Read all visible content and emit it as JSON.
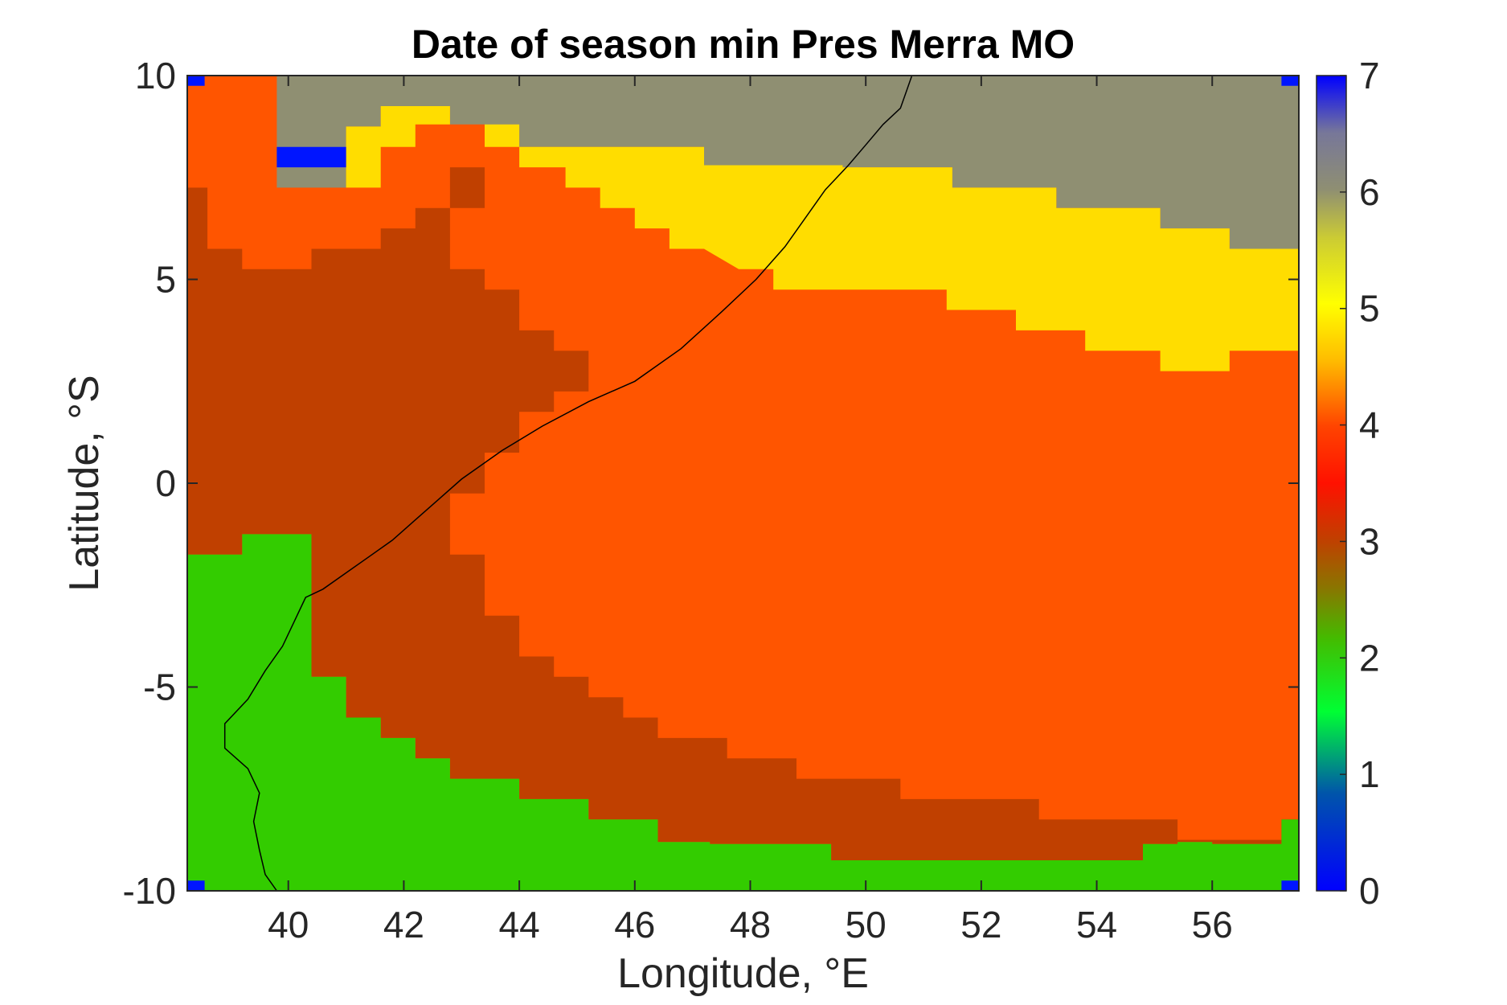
{
  "chart_data": {
    "type": "heatmap",
    "title": "Date of season min Pres Merra MO",
    "xlabel": "Longitude, °E",
    "ylabel": "Latitude, °S",
    "xlim": [
      38.25,
      57.5
    ],
    "ylim": [
      -10,
      10
    ],
    "xticks": [
      40,
      42,
      44,
      46,
      48,
      50,
      52,
      54,
      56
    ],
    "yticks": [
      -10,
      -5,
      0,
      5,
      10
    ],
    "colorbar": {
      "ticks": [
        0,
        1,
        2,
        3,
        4,
        5,
        6,
        7
      ],
      "range": [
        0,
        7
      ]
    },
    "colors": {
      "gray_6": "#8f8f72",
      "yellow_5": "#ffdd00",
      "orange_4": "#ff5500",
      "brown_3": "#c04000",
      "green_2": "#33cc00",
      "blue_0": "#0015ff",
      "coastline": "#000000"
    },
    "grid": false,
    "regions": [
      {
        "value": 6,
        "color": "gray_6",
        "polygon": [
          [
            39.8,
            10
          ],
          [
            57.5,
            10
          ],
          [
            57.5,
            5.75
          ],
          [
            56.3,
            5.75
          ],
          [
            56.3,
            6.25
          ],
          [
            55.1,
            6.25
          ],
          [
            55.1,
            6.75
          ],
          [
            53.3,
            6.75
          ],
          [
            53.3,
            7.25
          ],
          [
            51.5,
            7.25
          ],
          [
            51.5,
            7.75
          ],
          [
            49.6,
            7.75
          ],
          [
            49.6,
            7.8
          ],
          [
            48.5,
            7.8
          ],
          [
            47.2,
            7.8
          ],
          [
            47.2,
            8.25
          ],
          [
            44.0,
            8.25
          ],
          [
            44.0,
            8.75
          ],
          [
            43.4,
            8.75
          ],
          [
            43.4,
            8.8
          ],
          [
            42.8,
            8.8
          ],
          [
            42.8,
            9.25
          ],
          [
            41.6,
            9.25
          ],
          [
            41.6,
            8.75
          ],
          [
            41.0,
            8.75
          ],
          [
            41.0,
            7.25
          ],
          [
            39.8,
            7.25
          ]
        ]
      },
      {
        "value": 5,
        "color": "yellow_5",
        "polygon": [
          [
            44.0,
            8.25
          ],
          [
            47.2,
            8.25
          ],
          [
            47.2,
            7.8
          ],
          [
            49.6,
            7.8
          ],
          [
            49.6,
            7.75
          ],
          [
            51.5,
            7.75
          ],
          [
            51.5,
            7.25
          ],
          [
            53.3,
            7.25
          ],
          [
            53.3,
            6.75
          ],
          [
            55.1,
            6.75
          ],
          [
            55.1,
            6.25
          ],
          [
            56.3,
            6.25
          ],
          [
            56.3,
            5.75
          ],
          [
            57.5,
            5.75
          ],
          [
            57.5,
            3.25
          ],
          [
            56.3,
            3.25
          ],
          [
            56.3,
            2.75
          ],
          [
            55.1,
            2.75
          ],
          [
            55.1,
            3.25
          ],
          [
            53.8,
            3.25
          ],
          [
            53.8,
            3.75
          ],
          [
            52.6,
            3.75
          ],
          [
            52.6,
            4.25
          ],
          [
            51.4,
            4.25
          ],
          [
            51.4,
            4.75
          ],
          [
            50.2,
            4.75
          ],
          [
            50.2,
            4.75
          ],
          [
            48.4,
            4.75
          ],
          [
            48.4,
            5.25
          ],
          [
            47.8,
            5.25
          ],
          [
            47.2,
            5.75
          ],
          [
            46.6,
            5.75
          ],
          [
            46.6,
            6.25
          ],
          [
            46.0,
            6.25
          ],
          [
            46.0,
            6.75
          ],
          [
            45.4,
            6.75
          ],
          [
            45.4,
            7.25
          ],
          [
            44.8,
            7.25
          ],
          [
            44.8,
            7.75
          ],
          [
            44.0,
            7.75
          ]
        ]
      },
      {
        "value": 5,
        "color": "yellow_5",
        "polygon": [
          [
            41.0,
            8.75
          ],
          [
            41.6,
            8.75
          ],
          [
            41.6,
            9.25
          ],
          [
            42.8,
            9.25
          ],
          [
            42.8,
            8.8
          ],
          [
            42.2,
            8.8
          ],
          [
            42.2,
            8.25
          ],
          [
            41.6,
            8.25
          ],
          [
            41.6,
            7.25
          ],
          [
            41.0,
            7.25
          ]
        ]
      },
      {
        "value": 5,
        "color": "yellow_5",
        "polygon": [
          [
            43.4,
            8.8
          ],
          [
            44.0,
            8.8
          ],
          [
            44.0,
            8.25
          ],
          [
            43.4,
            8.25
          ]
        ]
      },
      {
        "value": 3,
        "color": "brown_3",
        "polygon": [
          [
            38.25,
            7.25
          ],
          [
            38.6,
            7.25
          ],
          [
            38.6,
            5.75
          ],
          [
            39.2,
            5.75
          ],
          [
            39.2,
            5.25
          ],
          [
            40.4,
            5.25
          ],
          [
            40.4,
            5.75
          ],
          [
            41.6,
            5.75
          ],
          [
            41.6,
            6.25
          ],
          [
            42.2,
            6.25
          ],
          [
            42.2,
            6.75
          ],
          [
            42.8,
            6.75
          ],
          [
            42.8,
            7.75
          ],
          [
            43.4,
            7.75
          ],
          [
            43.4,
            6.75
          ],
          [
            42.8,
            6.75
          ],
          [
            42.8,
            5.25
          ],
          [
            43.4,
            5.25
          ],
          [
            43.4,
            4.75
          ],
          [
            44.0,
            4.75
          ],
          [
            44.0,
            3.75
          ],
          [
            44.6,
            3.75
          ],
          [
            44.6,
            3.25
          ],
          [
            45.2,
            3.25
          ],
          [
            45.2,
            2.25
          ],
          [
            44.6,
            2.25
          ],
          [
            44.6,
            1.75
          ],
          [
            44.0,
            1.75
          ],
          [
            44.0,
            0.75
          ],
          [
            43.4,
            0.75
          ],
          [
            43.4,
            -0.25
          ],
          [
            42.8,
            -0.25
          ],
          [
            42.8,
            -1.75
          ],
          [
            43.4,
            -1.75
          ],
          [
            43.4,
            -3.25
          ],
          [
            44.0,
            -3.25
          ],
          [
            44.0,
            -4.25
          ],
          [
            44.6,
            -4.25
          ],
          [
            44.6,
            -4.75
          ],
          [
            45.2,
            -4.75
          ],
          [
            45.2,
            -5.25
          ],
          [
            45.8,
            -5.25
          ],
          [
            45.8,
            -5.75
          ],
          [
            46.4,
            -5.75
          ],
          [
            46.4,
            -6.25
          ],
          [
            47.6,
            -6.25
          ],
          [
            47.6,
            -6.75
          ],
          [
            48.8,
            -6.75
          ],
          [
            48.8,
            -7.25
          ],
          [
            50.6,
            -7.25
          ],
          [
            50.6,
            -7.75
          ],
          [
            53.0,
            -7.75
          ],
          [
            53.0,
            -8.25
          ],
          [
            55.4,
            -8.25
          ],
          [
            55.4,
            -8.75
          ],
          [
            57.2,
            -8.75
          ],
          [
            57.2,
            -8.25
          ],
          [
            57.5,
            -8.25
          ],
          [
            57.5,
            -8.8
          ],
          [
            57.2,
            -8.8
          ],
          [
            57.2,
            -8.85
          ],
          [
            56.0,
            -8.85
          ],
          [
            56.0,
            -8.8
          ],
          [
            55.4,
            -8.8
          ],
          [
            55.4,
            -8.85
          ],
          [
            54.8,
            -8.85
          ],
          [
            54.8,
            -9.25
          ],
          [
            49.4,
            -9.25
          ],
          [
            49.4,
            -8.85
          ],
          [
            47.3,
            -8.85
          ],
          [
            47.3,
            -8.8
          ],
          [
            46.4,
            -8.8
          ],
          [
            46.4,
            -8.25
          ],
          [
            45.2,
            -8.25
          ],
          [
            45.2,
            -7.75
          ],
          [
            44.0,
            -7.75
          ],
          [
            44.0,
            -7.25
          ],
          [
            42.8,
            -7.25
          ],
          [
            42.8,
            -6.75
          ],
          [
            42.2,
            -6.75
          ],
          [
            42.2,
            -6.25
          ],
          [
            41.6,
            -6.25
          ],
          [
            41.6,
            -5.75
          ],
          [
            41.0,
            -5.75
          ],
          [
            41.0,
            -4.75
          ],
          [
            40.4,
            -4.75
          ],
          [
            40.4,
            -1.25
          ],
          [
            39.2,
            -1.25
          ],
          [
            39.2,
            -1.75
          ],
          [
            38.25,
            -1.75
          ]
        ]
      },
      {
        "value": 2,
        "color": "green_2",
        "polygon": [
          [
            38.25,
            -1.75
          ],
          [
            39.2,
            -1.75
          ],
          [
            39.2,
            -1.25
          ],
          [
            40.4,
            -1.25
          ],
          [
            40.4,
            -4.75
          ],
          [
            41.0,
            -4.75
          ],
          [
            41.0,
            -5.75
          ],
          [
            41.6,
            -5.75
          ],
          [
            41.6,
            -6.25
          ],
          [
            42.2,
            -6.25
          ],
          [
            42.2,
            -6.75
          ],
          [
            42.8,
            -6.75
          ],
          [
            42.8,
            -7.25
          ],
          [
            44.0,
            -7.25
          ],
          [
            44.0,
            -7.75
          ],
          [
            45.2,
            -7.75
          ],
          [
            45.2,
            -8.25
          ],
          [
            46.4,
            -8.25
          ],
          [
            46.4,
            -8.8
          ],
          [
            47.3,
            -8.8
          ],
          [
            47.3,
            -8.85
          ],
          [
            49.4,
            -8.85
          ],
          [
            49.4,
            -9.25
          ],
          [
            54.8,
            -9.25
          ],
          [
            54.8,
            -8.85
          ],
          [
            55.4,
            -8.85
          ],
          [
            55.4,
            -8.8
          ],
          [
            56.0,
            -8.8
          ],
          [
            56.0,
            -8.85
          ],
          [
            57.2,
            -8.85
          ],
          [
            57.2,
            -8.25
          ],
          [
            57.5,
            -8.25
          ],
          [
            57.5,
            -10
          ],
          [
            38.25,
            -10
          ]
        ]
      },
      {
        "value": 0,
        "color": "blue_0",
        "polygon": [
          [
            39.8,
            8.25
          ],
          [
            41.0,
            8.25
          ],
          [
            41.0,
            7.75
          ],
          [
            39.8,
            7.75
          ]
        ]
      },
      {
        "value": 0,
        "color": "blue_0",
        "polygon": [
          [
            38.25,
            10
          ],
          [
            38.55,
            10
          ],
          [
            38.55,
            9.75
          ],
          [
            38.25,
            9.75
          ]
        ]
      },
      {
        "value": 0,
        "color": "blue_0",
        "polygon": [
          [
            57.2,
            10
          ],
          [
            57.5,
            10
          ],
          [
            57.5,
            9.75
          ],
          [
            57.2,
            9.75
          ]
        ]
      },
      {
        "value": 0,
        "color": "blue_0",
        "polygon": [
          [
            38.25,
            -9.75
          ],
          [
            38.55,
            -9.75
          ],
          [
            38.55,
            -10
          ],
          [
            38.25,
            -10
          ]
        ]
      },
      {
        "value": 0,
        "color": "blue_0",
        "polygon": [
          [
            57.2,
            -9.75
          ],
          [
            57.5,
            -9.75
          ],
          [
            57.5,
            -10
          ],
          [
            57.2,
            -10
          ]
        ]
      }
    ],
    "coastline": [
      [
        50.8,
        10
      ],
      [
        50.7,
        9.6
      ],
      [
        50.6,
        9.2
      ],
      [
        50.3,
        8.8
      ],
      [
        50.0,
        8.3
      ],
      [
        49.7,
        7.8
      ],
      [
        49.3,
        7.2
      ],
      [
        49.0,
        6.6
      ],
      [
        48.6,
        5.8
      ],
      [
        48.1,
        5.0
      ],
      [
        47.5,
        4.2
      ],
      [
        46.8,
        3.3
      ],
      [
        46.0,
        2.5
      ],
      [
        45.2,
        2.0
      ],
      [
        44.4,
        1.4
      ],
      [
        43.7,
        0.8
      ],
      [
        43.0,
        0.1
      ],
      [
        42.6,
        -0.4
      ],
      [
        42.2,
        -0.9
      ],
      [
        41.8,
        -1.4
      ],
      [
        41.4,
        -1.8
      ],
      [
        41.0,
        -2.2
      ],
      [
        40.6,
        -2.6
      ],
      [
        40.3,
        -2.8
      ],
      [
        40.1,
        -3.4
      ],
      [
        39.9,
        -4.0
      ],
      [
        39.6,
        -4.6
      ],
      [
        39.3,
        -5.3
      ],
      [
        38.9,
        -5.9
      ],
      [
        38.9,
        -6.5
      ],
      [
        39.3,
        -7.0
      ],
      [
        39.5,
        -7.6
      ],
      [
        39.4,
        -8.3
      ],
      [
        39.5,
        -9.0
      ],
      [
        39.6,
        -9.6
      ],
      [
        39.8,
        -10
      ]
    ]
  }
}
